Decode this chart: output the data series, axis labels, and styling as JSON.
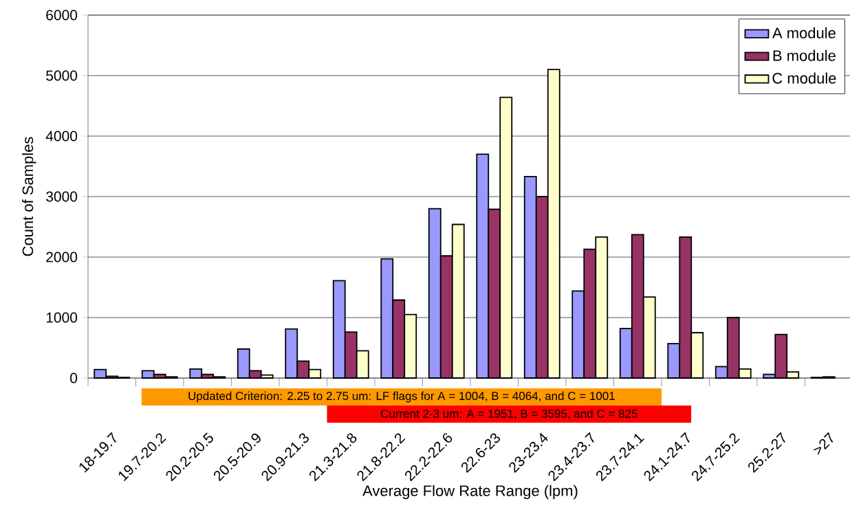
{
  "chart_data": {
    "type": "bar",
    "xlabel": "Average Flow Rate Range (lpm)",
    "ylabel": "Count of Samples",
    "categories": [
      "18-19.7",
      "19.7-20.2",
      "20.2-20.5",
      "20.5-20.9",
      "20.9-21.3",
      "21.3-21.8",
      "21.8-22.2",
      "22.2-22.6",
      "22.6-23",
      "23-23.4",
      "23.4-23.7",
      "23.7-24.1",
      "24.1-24.7",
      "24.7-25.2",
      "25.2-27",
      ">27"
    ],
    "series": [
      {
        "name": "A module",
        "color": "#9999ff",
        "values": [
          140,
          120,
          150,
          480,
          810,
          1610,
          1970,
          2800,
          3700,
          3330,
          1440,
          820,
          570,
          190,
          60,
          10
        ]
      },
      {
        "name": "B module",
        "color": "#993366",
        "values": [
          30,
          60,
          60,
          120,
          280,
          760,
          1290,
          2020,
          2790,
          3000,
          2130,
          2370,
          2330,
          1000,
          720,
          20
        ]
      },
      {
        "name": "C module",
        "color": "#ffffcc",
        "values": [
          10,
          20,
          20,
          50,
          140,
          450,
          1050,
          2540,
          4640,
          5100,
          2330,
          1340,
          750,
          150,
          100,
          null
        ]
      }
    ],
    "ylim": [
      0,
      6000
    ],
    "yticks": [
      0,
      1000,
      2000,
      3000,
      4000,
      5000,
      6000
    ],
    "grid": "y",
    "legend": "top right",
    "annotations": [
      "Updated Criterion: 2.25 to 2.75 um: LF flags for A = 1004, B = 4064, and C = 1001",
      "Current 2-3 um: A = 1951, B = 3595, and C = 825"
    ]
  }
}
